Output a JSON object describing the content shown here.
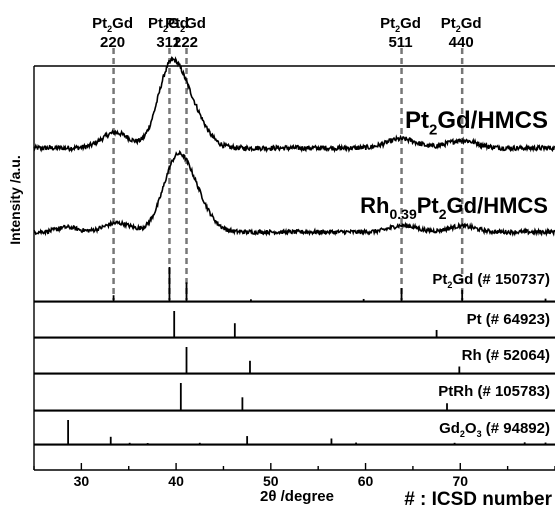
{
  "chart_data": {
    "type": "line",
    "xlabel": "2θ /degree",
    "ylabel": "Intensity /a.u.",
    "xlim": [
      25,
      80
    ],
    "x_ticks": [
      30,
      40,
      50,
      60,
      70
    ],
    "note": "# : ICSD number",
    "grid": false,
    "reference_lines": [
      {
        "formula": "Pt2Gd",
        "hkl": "220",
        "x": 33.4
      },
      {
        "formula": "Pt2Gd",
        "hkl": "311",
        "x": 39.3
      },
      {
        "formula": "Pt2Gd",
        "hkl": "222",
        "x": 41.1
      },
      {
        "formula": "Pt2Gd",
        "hkl": "511",
        "x": 63.8
      },
      {
        "formula": "Pt2Gd",
        "hkl": "440",
        "x": 70.2
      }
    ],
    "experimental_series": [
      {
        "label": "Pt2Gd/HMCS",
        "baseline": 0.25,
        "noise": 0.05,
        "peaks": [
          {
            "x": 33.6,
            "height": 0.22,
            "width": 2.0
          },
          {
            "x": 39.3,
            "height": 1.0,
            "width": 1.9
          },
          {
            "x": 41.4,
            "height": 0.55,
            "width": 2.2
          },
          {
            "x": 63.8,
            "height": 0.13,
            "width": 2.2
          },
          {
            "x": 70.2,
            "height": 0.11,
            "width": 2.2
          }
        ]
      },
      {
        "label": "Rh0.39Pt2Gd/HMCS",
        "baseline": 0.25,
        "noise": 0.05,
        "peaks": [
          {
            "x": 28.5,
            "height": 0.08,
            "width": 1.5
          },
          {
            "x": 33.8,
            "height": 0.15,
            "width": 2.0
          },
          {
            "x": 39.9,
            "height": 1.0,
            "width": 2.0
          },
          {
            "x": 41.8,
            "height": 0.55,
            "width": 2.2
          },
          {
            "x": 64.0,
            "height": 0.11,
            "width": 2.0
          },
          {
            "x": 70.2,
            "height": 0.1,
            "width": 2.0
          }
        ]
      }
    ],
    "reference_patterns": [
      {
        "label": "Pt2Gd (# 150737)",
        "peaks": [
          {
            "x": 33.4,
            "intensity": 0.17
          },
          {
            "x": 39.3,
            "intensity": 1.0
          },
          {
            "x": 41.1,
            "intensity": 0.55
          },
          {
            "x": 47.9,
            "intensity": 0.05
          },
          {
            "x": 59.8,
            "intensity": 0.06
          },
          {
            "x": 63.8,
            "intensity": 0.38
          },
          {
            "x": 70.2,
            "intensity": 0.33
          },
          {
            "x": 79.0,
            "intensity": 0.07
          }
        ]
      },
      {
        "label": "Pt (# 64923)",
        "peaks": [
          {
            "x": 39.8,
            "intensity": 1.0
          },
          {
            "x": 46.2,
            "intensity": 0.53
          },
          {
            "x": 67.5,
            "intensity": 0.27
          }
        ]
      },
      {
        "label": "Rh (# 52064)",
        "peaks": [
          {
            "x": 41.1,
            "intensity": 1.0
          },
          {
            "x": 47.8,
            "intensity": 0.47
          },
          {
            "x": 69.9,
            "intensity": 0.25
          }
        ]
      },
      {
        "label": "PtRh (# 105783)",
        "peaks": [
          {
            "x": 40.5,
            "intensity": 1.0
          },
          {
            "x": 47.0,
            "intensity": 0.47
          },
          {
            "x": 68.6,
            "intensity": 0.25
          }
        ]
      },
      {
        "label": "Gd2O3 (# 94892)",
        "peaks": [
          {
            "x": 28.6,
            "intensity": 1.0
          },
          {
            "x": 33.1,
            "intensity": 0.3
          },
          {
            "x": 35.1,
            "intensity": 0.05
          },
          {
            "x": 37.0,
            "intensity": 0.04
          },
          {
            "x": 42.5,
            "intensity": 0.05
          },
          {
            "x": 47.5,
            "intensity": 0.33
          },
          {
            "x": 56.4,
            "intensity": 0.23
          },
          {
            "x": 59.0,
            "intensity": 0.06
          },
          {
            "x": 69.4,
            "intensity": 0.05
          },
          {
            "x": 76.8,
            "intensity": 0.07
          },
          {
            "x": 79.0,
            "intensity": 0.06
          }
        ]
      }
    ]
  }
}
